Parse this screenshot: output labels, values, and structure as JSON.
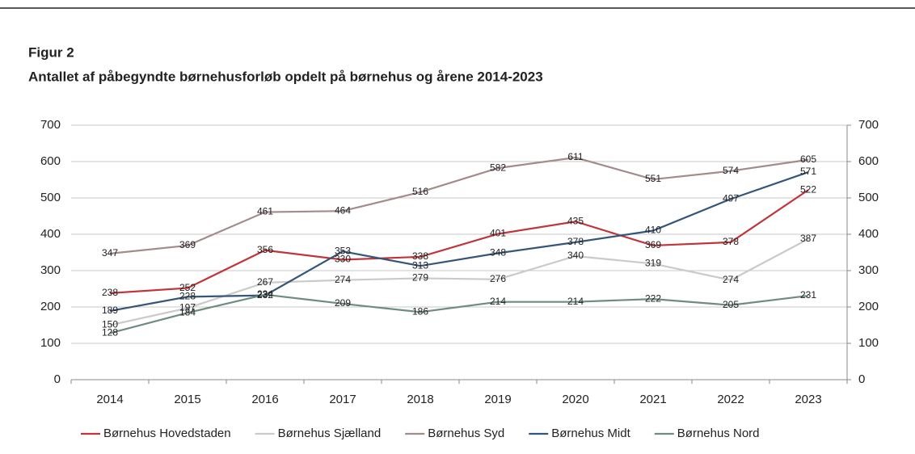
{
  "chart_data": {
    "type": "line",
    "title": "Figur 2",
    "subtitle": "Antallet af påbegyndte børnehusforløb opdelt på børnehus og årene 2014-2023",
    "categories": [
      "2014",
      "2015",
      "2016",
      "2017",
      "2018",
      "2019",
      "2020",
      "2021",
      "2022",
      "2023"
    ],
    "series": [
      {
        "name": "Børnehus Hovedstaden",
        "color": "#c0353b",
        "values": [
          238,
          252,
          356,
          330,
          338,
          401,
          435,
          369,
          378,
          522
        ]
      },
      {
        "name": "Børnehus Sjælland",
        "color": "#cacaca",
        "values": [
          150,
          197,
          267,
          274,
          279,
          276,
          340,
          319,
          274,
          387
        ]
      },
      {
        "name": "Børnehus Syd",
        "color": "#a38b8b",
        "values": [
          347,
          369,
          461,
          464,
          516,
          582,
          611,
          551,
          574,
          605
        ]
      },
      {
        "name": "Børnehus Midt",
        "color": "#34567a",
        "values": [
          189,
          228,
          232,
          353,
          313,
          348,
          378,
          410,
          497,
          571
        ]
      },
      {
        "name": "Børnehus Nord",
        "color": "#6f8c7e",
        "values": [
          128,
          184,
          234,
          209,
          186,
          214,
          214,
          222,
          205,
          231
        ]
      }
    ],
    "ylim": [
      0,
      700
    ],
    "yticks": [
      0,
      100,
      200,
      300,
      400,
      500,
      600,
      700
    ],
    "y2lim": [
      0,
      700
    ],
    "y2ticks": [
      0,
      100,
      200,
      300,
      400,
      500,
      600,
      700
    ],
    "grid": true,
    "legend": "bottom"
  }
}
